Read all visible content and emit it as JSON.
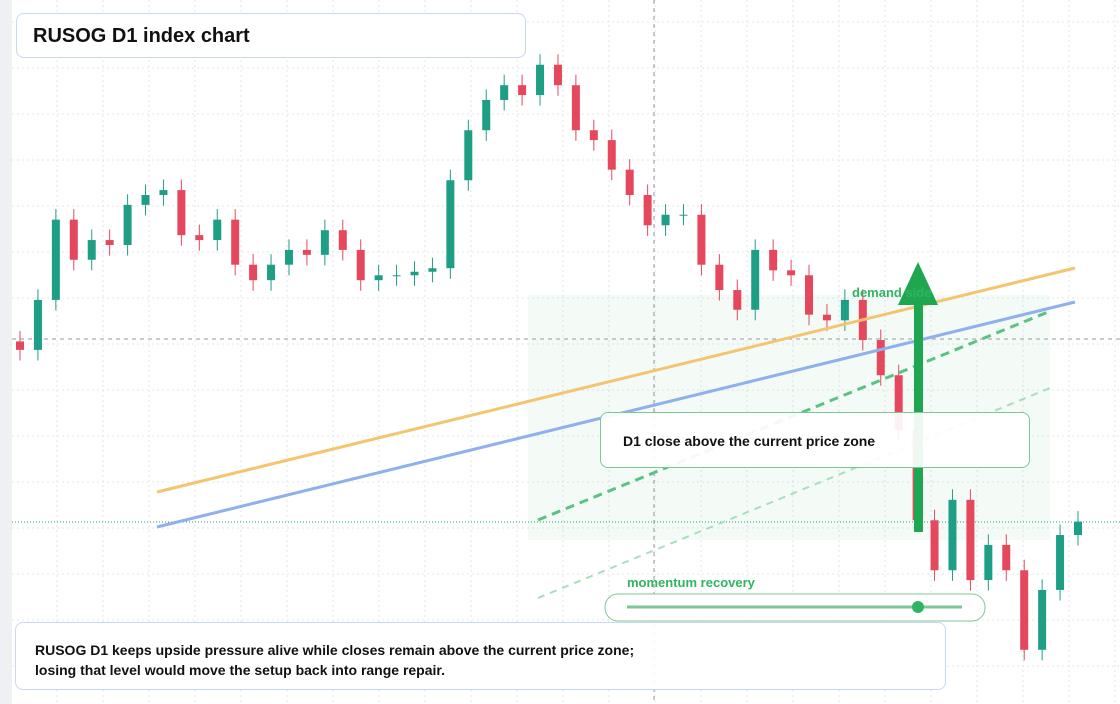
{
  "chart_data": {
    "type": "candlestick",
    "title": "RUSOG D1 index chart",
    "annotations": {
      "zone": "demand side",
      "note": "D1 close above the current price zone",
      "slider": "momentum recovery"
    },
    "summary": [
      "RUSOG D1 keeps upside pressure alive while closes remain above the current price zone;",
      "losing that level would move the setup back into range repair."
    ],
    "up_color": "#1f9e86",
    "down_color": "#e5485d",
    "ylim": [
      0,
      100
    ],
    "open": [
      51.5,
      50.3,
      57.4,
      68.8,
      63.1,
      65.9,
      65.2,
      70.9,
      72.3,
      73.0,
      66.6,
      65.9,
      68.8,
      62.4,
      60.2,
      62.4,
      64.5,
      63.8,
      67.3,
      64.5,
      60.2,
      60.9,
      60.9,
      61.4,
      61.9,
      74.4,
      81.5,
      85.8,
      87.9,
      86.5,
      90.8,
      87.9,
      81.5,
      80.1,
      75.9,
      72.3,
      68.0,
      69.5,
      69.5,
      62.4,
      58.8,
      56.0,
      64.5,
      61.6,
      60.9,
      55.3,
      54.5,
      57.4,
      51.7,
      46.7,
      38.9,
      26.1,
      19.0,
      29.0,
      17.6,
      22.6,
      19.0,
      7.7,
      16.2,
      24.0
    ],
    "high": [
      53.0,
      58.9,
      70.3,
      70.3,
      67.4,
      67.4,
      72.4,
      73.8,
      74.5,
      74.5,
      68.1,
      70.3,
      70.3,
      63.9,
      63.9,
      66.0,
      66.0,
      68.8,
      68.8,
      66.0,
      62.4,
      62.4,
      62.9,
      63.4,
      75.9,
      83.0,
      87.3,
      89.4,
      89.4,
      92.3,
      92.3,
      89.4,
      83.0,
      81.6,
      77.4,
      73.8,
      71.0,
      71.0,
      71.0,
      63.9,
      60.3,
      66.0,
      66.0,
      63.1,
      62.4,
      56.8,
      58.9,
      58.9,
      53.2,
      48.2,
      40.4,
      27.6,
      30.5,
      30.5,
      24.1,
      24.1,
      20.5,
      17.7,
      25.5,
      27.4
    ],
    "low": [
      48.8,
      48.8,
      55.9,
      61.6,
      61.6,
      63.7,
      63.7,
      69.4,
      70.8,
      65.1,
      64.4,
      64.4,
      60.9,
      58.7,
      58.7,
      60.9,
      62.3,
      62.3,
      63.0,
      58.7,
      58.7,
      59.4,
      59.4,
      59.9,
      60.4,
      72.9,
      80.0,
      84.3,
      85.0,
      85.0,
      86.4,
      80.0,
      78.6,
      74.4,
      70.8,
      66.5,
      66.5,
      68.0,
      60.9,
      57.3,
      54.5,
      54.5,
      60.1,
      59.4,
      53.8,
      53.0,
      53.0,
      50.2,
      45.2,
      37.4,
      24.6,
      17.5,
      17.5,
      16.1,
      16.1,
      17.5,
      6.2,
      6.2,
      14.7,
      22.5
    ],
    "close": [
      50.3,
      57.4,
      68.8,
      63.1,
      65.9,
      65.2,
      70.9,
      72.3,
      73.0,
      66.6,
      65.9,
      68.8,
      62.4,
      60.2,
      62.4,
      64.5,
      63.8,
      67.3,
      64.5,
      60.2,
      60.9,
      60.9,
      61.4,
      61.9,
      74.4,
      81.5,
      85.8,
      87.9,
      86.5,
      90.8,
      87.9,
      81.5,
      80.1,
      75.9,
      72.3,
      68.0,
      69.5,
      69.5,
      62.4,
      58.8,
      56.0,
      64.5,
      61.6,
      60.9,
      55.3,
      54.5,
      57.4,
      51.7,
      46.7,
      38.9,
      26.1,
      19.0,
      29.0,
      17.6,
      22.6,
      19.0,
      7.7,
      16.2,
      24.0,
      25.9
    ]
  }
}
